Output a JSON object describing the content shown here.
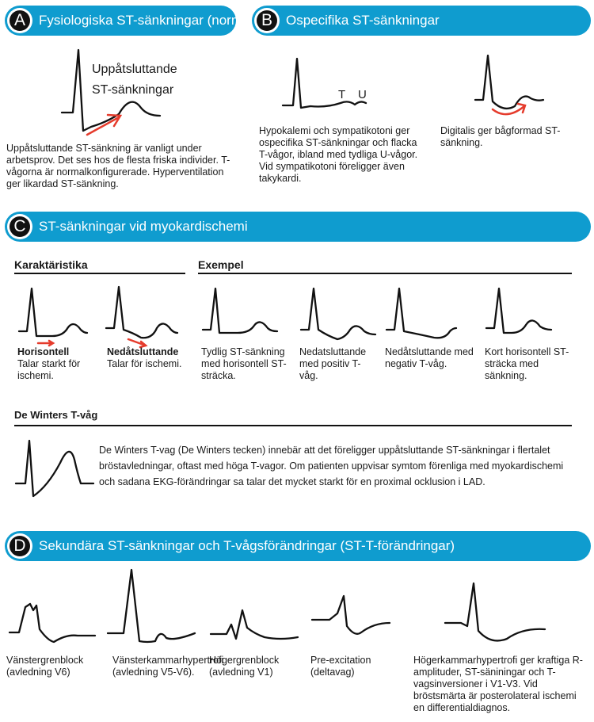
{
  "colors": {
    "banner": "#0f9ccf",
    "arrow": "#e53b2c",
    "trace": "#111111"
  },
  "sectionA": {
    "letter": "A",
    "title": "Fysiologiska ST-sänkningar (normala)",
    "figure_label_1": "Uppåtsluttande",
    "figure_label_2": "ST-sänkningar",
    "text": "Uppåtsluttande ST-sänkning är vanligt under arbetsprov. Det ses hos de flesta friska individer. T-vågorna är normalkonfigurerade. Hyperventilation ger likardad ST-sänkning."
  },
  "sectionB": {
    "letter": "B",
    "title": "Ospecifika ST-sänkningar",
    "t_label": "T",
    "u_label": "U",
    "text_1": "Hypokalemi och sympatikotoni ger ospecifika ST-sänkningar och flacka T-vågor, ibland med tydliga U-vågor. Vid sympatikotoni föreligger även takykardi.",
    "text_2": "Digitalis ger bågformad ST-sänkning."
  },
  "sectionC": {
    "letter": "C",
    "title": "ST-sänkningar vid myokardischemi",
    "char_heading": "Karaktäristika",
    "example_heading": "Exempel",
    "char_items": [
      {
        "name": "Horisontell",
        "desc": "Talar starkt för ischemi."
      },
      {
        "name": "Nedåtsluttande",
        "desc": "Talar för ischemi."
      }
    ],
    "examples": [
      "Tydlig ST-sänkning med horisontell ST-sträcka.",
      "Nedatsluttande med positiv T-våg.",
      "Nedåtsluttande med negativ T-våg.",
      "Kort horisontell ST-sträcka med sänkning."
    ],
    "dewinters_heading": "De Winters T-våg",
    "dewinters_text": "De Winters T-vag (De Winters tecken) innebär att det föreligger uppåtsluttande ST-sänkningar i flertalet bröstavledningar, oftast med höga T-vagor. Om patienten uppvisar symtom förenliga med myokardischemi och sadana EKG-förändringar sa talar det mycket starkt för en proximal ocklusion i LAD."
  },
  "sectionD": {
    "letter": "D",
    "title": "Sekundära ST-sänkningar och T-vågsförändringar (ST-T-förändringar)",
    "items": [
      "Vänstergrenblock (avledning V6)",
      "Vänsterkammarhypertrofi (avledning V5-V6).",
      "Högergrenblock (avledning V1)",
      "Pre-excitation (deltavag)",
      "Högerkammarhypertrofi ger kraftiga R-amplituder, ST-säniningar och T-vagsinversioner i V1-V3. Vid bröstsmärta är posterolateral ischemi en differentialdiagnos."
    ]
  }
}
